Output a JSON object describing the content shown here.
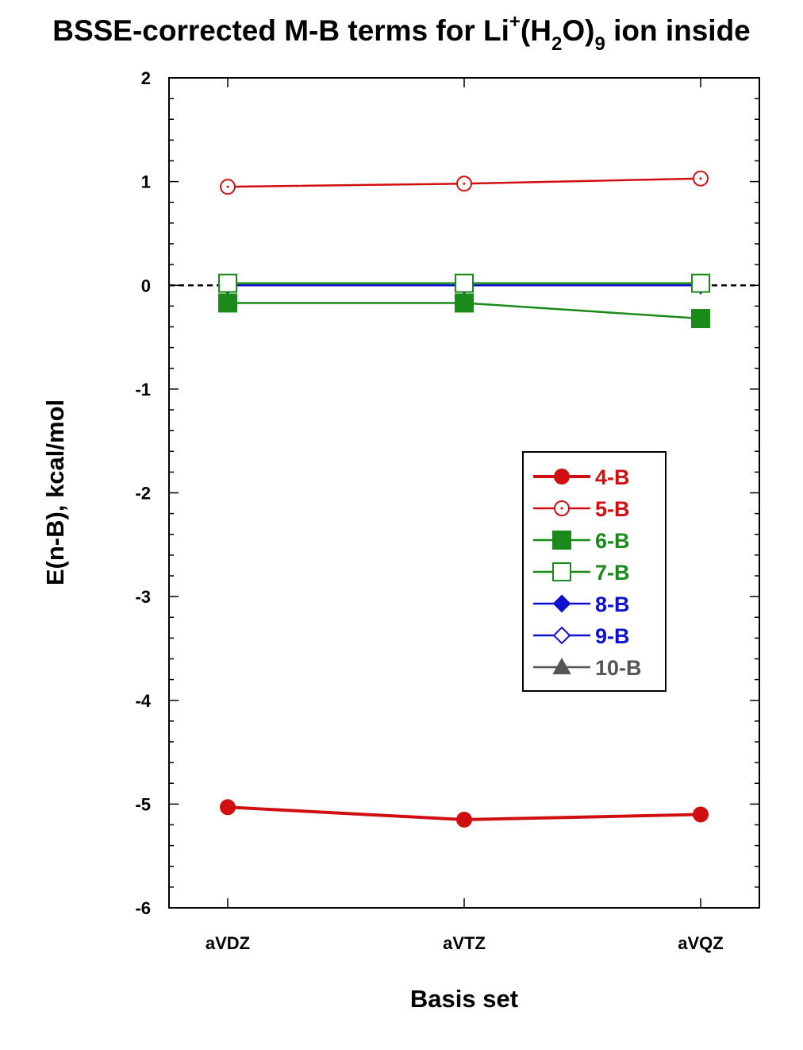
{
  "chart_data": {
    "type": "line",
    "title_parts": {
      "prefix": "BSSE-corrected M-B terms for Li",
      "sup": "+",
      "open": "(H",
      "sub1": "2",
      "mid": "O)",
      "sub2": "9",
      "suffix": " ion inside"
    },
    "xlabel": "Basis set",
    "ylabel": "E(n-B), kcal/mol",
    "categories": [
      "aVDZ",
      "aVTZ",
      "aVQZ"
    ],
    "ylim": [
      -6,
      2
    ],
    "yticks": [
      2,
      1,
      0,
      -1,
      -2,
      -3,
      -4,
      -5,
      -6
    ],
    "reference_line": 0,
    "legend_position": "right-middle",
    "series": [
      {
        "name": "4-B",
        "values": [
          -5.03,
          -5.15,
          -5.1
        ],
        "color": "#d01010",
        "marker": "circle",
        "filled": true,
        "thick": true
      },
      {
        "name": "5-B",
        "values": [
          0.95,
          0.98,
          1.03
        ],
        "color": "#d01010",
        "marker": "circle",
        "filled": false,
        "thick": false
      },
      {
        "name": "6-B",
        "values": [
          -0.17,
          -0.17,
          -0.32
        ],
        "color": "#1a8a1a",
        "marker": "square",
        "filled": true,
        "thick": false
      },
      {
        "name": "7-B",
        "values": [
          0.02,
          0.02,
          0.02
        ],
        "color": "#1a8a1a",
        "marker": "square",
        "filled": false,
        "thick": false
      },
      {
        "name": "8-B",
        "values": [
          0.0,
          0.0,
          0.0
        ],
        "color": "#1010d0",
        "marker": "diamond",
        "filled": true,
        "thick": false
      },
      {
        "name": "9-B",
        "values": [
          0.0,
          0.0,
          0.0
        ],
        "color": "#1010d0",
        "marker": "diamond",
        "filled": false,
        "thick": false
      },
      {
        "name": "10-B",
        "values": [
          0.0,
          0.0,
          0.0
        ],
        "color": "#555555",
        "marker": "triangle",
        "filled": true,
        "thick": false
      }
    ]
  }
}
